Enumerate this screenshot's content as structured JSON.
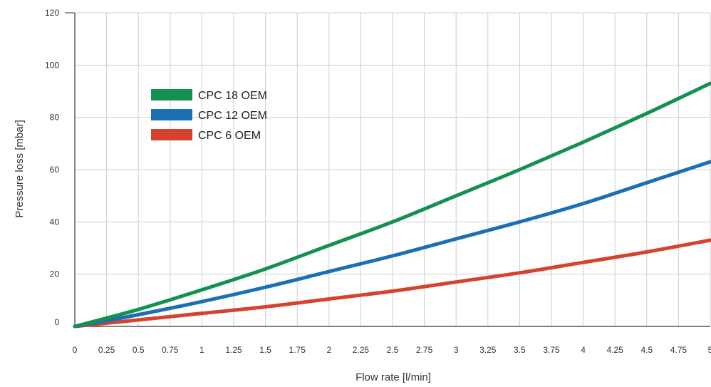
{
  "chart_data": {
    "type": "line",
    "xlabel": "Flow rate [l/min]",
    "ylabel": "Pressure loss [mbar]",
    "xlim": [
      0,
      5
    ],
    "ylim": [
      0,
      120
    ],
    "x_ticks": [
      "0",
      "0.25",
      "0.5",
      "0.75",
      "1",
      "1.25",
      "1.5",
      "1.75",
      "2",
      "2.25",
      "2.5",
      "2.75",
      "3",
      "3.25",
      "3.5",
      "3.75",
      "4",
      "4.25",
      "4.5",
      "4.75",
      "5"
    ],
    "y_ticks": [
      "0",
      "20",
      "40",
      "60",
      "80",
      "100",
      "120"
    ],
    "grid": true,
    "legend_position": "upper-left",
    "series": [
      {
        "name": "CPC 18 OEM",
        "color": "#139150",
        "x": [
          0,
          0.5,
          1,
          1.5,
          2,
          2.5,
          3,
          3.5,
          4,
          4.5,
          5
        ],
        "y": [
          0,
          6.5,
          14,
          22,
          31,
          40,
          50,
          60,
          70.5,
          81.5,
          93
        ]
      },
      {
        "name": "CPC 12 OEM",
        "color": "#1b6fb5",
        "x": [
          0,
          0.5,
          1,
          1.5,
          2,
          2.5,
          3,
          3.5,
          4,
          4.5,
          5
        ],
        "y": [
          0,
          4.5,
          9.5,
          15,
          21,
          27,
          33.5,
          40,
          47,
          55,
          63
        ]
      },
      {
        "name": "CPC 6 OEM",
        "color": "#d5422e",
        "x": [
          0,
          0.5,
          1,
          1.5,
          2,
          2.5,
          3,
          3.5,
          4,
          4.5,
          5
        ],
        "y": [
          0,
          2.5,
          5,
          7.5,
          10.5,
          13.5,
          17,
          20.5,
          24.5,
          28.5,
          33
        ]
      }
    ]
  }
}
